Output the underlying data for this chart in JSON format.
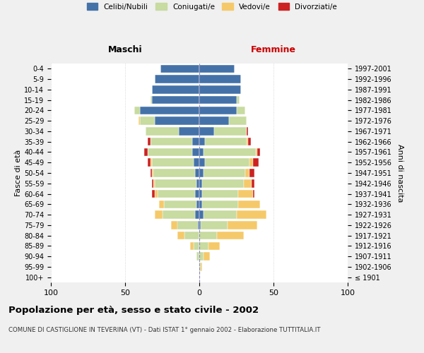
{
  "age_groups": [
    "100+",
    "95-99",
    "90-94",
    "85-89",
    "80-84",
    "75-79",
    "70-74",
    "65-69",
    "60-64",
    "55-59",
    "50-54",
    "45-49",
    "40-44",
    "35-39",
    "30-34",
    "25-29",
    "20-24",
    "15-19",
    "10-14",
    "5-9",
    "0-4"
  ],
  "birth_years": [
    "≤ 1901",
    "1902-1906",
    "1907-1911",
    "1912-1916",
    "1917-1921",
    "1922-1926",
    "1927-1931",
    "1932-1936",
    "1937-1941",
    "1942-1946",
    "1947-1951",
    "1952-1956",
    "1957-1961",
    "1962-1966",
    "1967-1971",
    "1972-1976",
    "1977-1981",
    "1982-1986",
    "1987-1991",
    "1992-1996",
    "1997-2001"
  ],
  "males": {
    "celibi": [
      0,
      0,
      0,
      0,
      0,
      1,
      3,
      2,
      3,
      2,
      3,
      4,
      5,
      5,
      14,
      30,
      40,
      32,
      32,
      30,
      26
    ],
    "coniugati": [
      0,
      0,
      2,
      4,
      10,
      14,
      22,
      22,
      25,
      28,
      28,
      28,
      30,
      28,
      22,
      10,
      4,
      1,
      0,
      0,
      0
    ],
    "vedovi": [
      0,
      0,
      0,
      2,
      5,
      4,
      5,
      3,
      2,
      1,
      1,
      1,
      0,
      0,
      0,
      1,
      0,
      0,
      0,
      0,
      0
    ],
    "divorziati": [
      0,
      0,
      0,
      0,
      0,
      0,
      0,
      0,
      2,
      1,
      1,
      2,
      2,
      2,
      0,
      0,
      0,
      0,
      0,
      0,
      0
    ]
  },
  "females": {
    "nubili": [
      0,
      0,
      0,
      0,
      0,
      1,
      3,
      2,
      2,
      2,
      3,
      4,
      3,
      4,
      10,
      20,
      25,
      25,
      28,
      28,
      24
    ],
    "coniugate": [
      0,
      1,
      3,
      6,
      12,
      18,
      22,
      24,
      24,
      28,
      28,
      30,
      35,
      28,
      22,
      12,
      6,
      2,
      0,
      0,
      0
    ],
    "vedove": [
      0,
      1,
      4,
      8,
      18,
      20,
      20,
      15,
      10,
      5,
      3,
      2,
      1,
      1,
      0,
      0,
      0,
      0,
      0,
      0,
      0
    ],
    "divorziate": [
      0,
      0,
      0,
      0,
      0,
      0,
      0,
      0,
      1,
      2,
      3,
      4,
      2,
      2,
      1,
      0,
      0,
      0,
      0,
      0,
      0
    ]
  },
  "colors": {
    "celibi": "#4472a8",
    "coniugati": "#c8dba0",
    "vedovi": "#f5c96a",
    "divorziati": "#cc2222"
  },
  "xlim": [
    -100,
    100
  ],
  "xticks": [
    -100,
    -50,
    0,
    50,
    100
  ],
  "xticklabels": [
    "100",
    "50",
    "0",
    "50",
    "100"
  ],
  "title": "Popolazione per età, sesso e stato civile - 2002",
  "subtitle": "COMUNE DI CASTIGLIONE IN TEVERINA (VT) - Dati ISTAT 1° gennaio 2002 - Elaborazione TUTTITALIA.IT",
  "ylabel_left": "Fasce di età",
  "ylabel_right": "Anni di nascita",
  "maschi_label": "Maschi",
  "femmine_label": "Femmine",
  "legend_labels": [
    "Celibi/Nubili",
    "Coniugati/e",
    "Vedovi/e",
    "Divorziati/e"
  ],
  "bg_color": "#f0f0f0",
  "plot_bg_color": "#ffffff"
}
